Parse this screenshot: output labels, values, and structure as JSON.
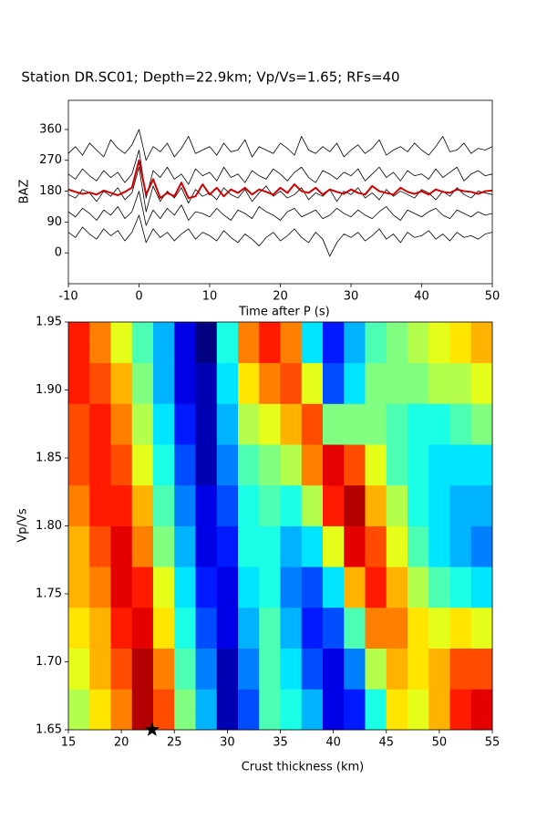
{
  "chart_data": [
    {
      "type": "line",
      "title": "Station DR.SC01; Depth=22.9km; Vp/Vs=1.65; RFs=40",
      "x_label": "Time after P (s)",
      "y_label": "BAZ",
      "x": [
        -10,
        -9,
        -8,
        -7,
        -6,
        -5,
        -4,
        -3,
        -2,
        -1,
        0,
        1,
        2,
        3,
        4,
        5,
        6,
        7,
        8,
        9,
        10,
        11,
        12,
        13,
        14,
        15,
        16,
        17,
        18,
        19,
        20,
        21,
        22,
        23,
        24,
        25,
        26,
        27,
        28,
        29,
        30,
        31,
        32,
        33,
        34,
        35,
        36,
        37,
        38,
        39,
        40,
        41,
        42,
        43,
        44,
        45,
        46,
        47,
        48,
        49,
        50
      ],
      "xlim": [
        -10,
        50
      ],
      "xticks": [
        -10,
        0,
        10,
        20,
        30,
        40,
        50
      ],
      "ylim": [
        -90,
        445
      ],
      "yticks": [
        0,
        90,
        180,
        270,
        360
      ],
      "series": [
        {
          "color": "#000000",
          "values": [
            290,
            310,
            285,
            320,
            300,
            280,
            330,
            305,
            290,
            315,
            360,
            270,
            310,
            295,
            320,
            280,
            305,
            340,
            290,
            300,
            310,
            285,
            320,
            295,
            300,
            330,
            280,
            310,
            300,
            290,
            320,
            305,
            285,
            340,
            300,
            290,
            310,
            295,
            320,
            280,
            300,
            315,
            290,
            305,
            330,
            285,
            300,
            310,
            295,
            320,
            300,
            285,
            310,
            340,
            295,
            300,
            320,
            290,
            305,
            300,
            310
          ]
        },
        {
          "color": "#000000",
          "values": [
            230,
            215,
            245,
            225,
            210,
            240,
            220,
            235,
            205,
            230,
            300,
            160,
            240,
            220,
            250,
            215,
            230,
            200,
            245,
            225,
            235,
            210,
            250,
            220,
            230,
            205,
            240,
            225,
            215,
            245,
            230,
            210,
            235,
            250,
            220,
            205,
            240,
            230,
            215,
            235,
            225,
            245,
            210,
            230,
            250,
            220,
            235,
            210,
            240,
            225,
            230,
            215,
            245,
            220,
            235,
            250,
            210,
            230,
            240,
            225,
            230
          ]
        },
        {
          "color": "#000000",
          "values": [
            170,
            160,
            185,
            175,
            150,
            180,
            165,
            190,
            155,
            175,
            250,
            120,
            195,
            150,
            180,
            160,
            190,
            145,
            185,
            165,
            175,
            155,
            190,
            170,
            160,
            185,
            150,
            175,
            195,
            165,
            180,
            160,
            170,
            190,
            155,
            175,
            165,
            185,
            150,
            180,
            170,
            190,
            160,
            175,
            155,
            185,
            165,
            180,
            170,
            160,
            185,
            175,
            155,
            180,
            165,
            190,
            170,
            160,
            180,
            175,
            170
          ]
        },
        {
          "color": "#000000",
          "values": [
            120,
            105,
            130,
            115,
            95,
            125,
            110,
            135,
            100,
            120,
            180,
            80,
            125,
            100,
            130,
            110,
            140,
            95,
            120,
            115,
            105,
            130,
            110,
            95,
            125,
            115,
            100,
            135,
            120,
            110,
            95,
            120,
            130,
            105,
            115,
            125,
            100,
            110,
            130,
            115,
            105,
            125,
            110,
            100,
            120,
            135,
            110,
            95,
            125,
            115,
            105,
            120,
            130,
            110,
            100,
            125,
            115,
            105,
            120,
            110,
            115
          ]
        },
        {
          "color": "#000000",
          "values": [
            60,
            45,
            75,
            55,
            40,
            70,
            50,
            65,
            35,
            60,
            110,
            30,
            70,
            45,
            60,
            35,
            55,
            70,
            40,
            60,
            50,
            35,
            65,
            45,
            30,
            55,
            40,
            20,
            45,
            60,
            35,
            50,
            70,
            45,
            30,
            60,
            40,
            -10,
            30,
            55,
            45,
            60,
            35,
            50,
            70,
            40,
            55,
            30,
            60,
            45,
            50,
            65,
            40,
            55,
            35,
            60,
            45,
            50,
            40,
            55,
            60
          ]
        },
        {
          "color": "#cc0000",
          "values": [
            185,
            178,
            172,
            176,
            170,
            182,
            175,
            168,
            178,
            190,
            270,
            170,
            215,
            160,
            175,
            165,
            205,
            160,
            165,
            200,
            170,
            190,
            165,
            185,
            175,
            190,
            170,
            185,
            178,
            170,
            190,
            175,
            200,
            180,
            175,
            190,
            170,
            185,
            178,
            172,
            185,
            175,
            170,
            195,
            180,
            175,
            170,
            190,
            178,
            172,
            180,
            170,
            185,
            178,
            175,
            185,
            180,
            178,
            172,
            180,
            182
          ]
        }
      ]
    },
    {
      "type": "heatmap",
      "colormap": "jet",
      "x_label": "Crust thickness (km)",
      "y_label": "Vp/Vs",
      "xlim": [
        15,
        55
      ],
      "xticks": [
        15,
        20,
        25,
        30,
        35,
        40,
        45,
        50,
        55
      ],
      "ylim": [
        1.65,
        1.95
      ],
      "yticks": [
        1.65,
        {
          "value": 1.7,
          "label": "1.70"
        },
        1.75,
        {
          "value": 1.8,
          "label": "1.80"
        },
        1.85,
        {
          "value": 1.9,
          "label": "1.90"
        },
        1.95
      ],
      "x_bins": [
        15,
        17,
        19,
        21,
        23,
        25,
        27,
        29,
        31,
        33,
        35,
        37,
        39,
        41,
        43,
        45,
        47,
        49,
        51,
        53,
        55
      ],
      "y_bins": [
        1.65,
        1.68,
        1.71,
        1.74,
        1.77,
        1.8,
        1.83,
        1.86,
        1.89,
        1.92,
        1.95
      ],
      "values": [
        [
          0.55,
          0.65,
          0.75,
          0.95,
          0.8,
          0.5,
          0.3,
          0.05,
          0.2,
          0.45,
          0.4,
          0.3,
          0.1,
          0.15,
          0.4,
          0.65,
          0.6,
          0.7,
          0.85,
          0.9
        ],
        [
          0.6,
          0.7,
          0.8,
          0.95,
          0.75,
          0.45,
          0.25,
          0.05,
          0.25,
          0.45,
          0.35,
          0.2,
          0.1,
          0.25,
          0.55,
          0.7,
          0.65,
          0.7,
          0.8,
          0.8
        ],
        [
          0.65,
          0.7,
          0.85,
          0.9,
          0.65,
          0.4,
          0.2,
          0.1,
          0.3,
          0.45,
          0.3,
          0.15,
          0.2,
          0.45,
          0.75,
          0.75,
          0.65,
          0.6,
          0.65,
          0.6
        ],
        [
          0.7,
          0.75,
          0.9,
          0.85,
          0.6,
          0.35,
          0.15,
          0.1,
          0.35,
          0.4,
          0.25,
          0.2,
          0.35,
          0.7,
          0.85,
          0.7,
          0.55,
          0.45,
          0.4,
          0.35
        ],
        [
          0.7,
          0.8,
          0.9,
          0.75,
          0.5,
          0.3,
          0.1,
          0.15,
          0.4,
          0.4,
          0.3,
          0.35,
          0.6,
          0.9,
          0.8,
          0.6,
          0.45,
          0.35,
          0.3,
          0.25
        ],
        [
          0.75,
          0.85,
          0.85,
          0.7,
          0.45,
          0.25,
          0.1,
          0.2,
          0.4,
          0.45,
          0.4,
          0.55,
          0.85,
          0.95,
          0.7,
          0.55,
          0.4,
          0.35,
          0.3,
          0.3
        ],
        [
          0.8,
          0.85,
          0.8,
          0.6,
          0.4,
          0.2,
          0.05,
          0.25,
          0.45,
          0.5,
          0.55,
          0.75,
          0.9,
          0.8,
          0.6,
          0.45,
          0.4,
          0.35,
          0.35,
          0.35
        ],
        [
          0.8,
          0.85,
          0.75,
          0.55,
          0.35,
          0.15,
          0.05,
          0.3,
          0.55,
          0.6,
          0.7,
          0.8,
          0.5,
          0.5,
          0.5,
          0.45,
          0.4,
          0.4,
          0.45,
          0.5
        ],
        [
          0.85,
          0.8,
          0.7,
          0.5,
          0.3,
          0.1,
          0.05,
          0.35,
          0.65,
          0.75,
          0.8,
          0.6,
          0.2,
          0.35,
          0.5,
          0.5,
          0.5,
          0.55,
          0.55,
          0.6
        ],
        [
          0.85,
          0.75,
          0.6,
          0.45,
          0.3,
          0.1,
          0.0,
          0.4,
          0.75,
          0.85,
          0.75,
          0.35,
          0.15,
          0.3,
          0.45,
          0.5,
          0.55,
          0.6,
          0.65,
          0.7
        ]
      ],
      "marker": {
        "x": 22.9,
        "y": 1.65
      }
    }
  ]
}
